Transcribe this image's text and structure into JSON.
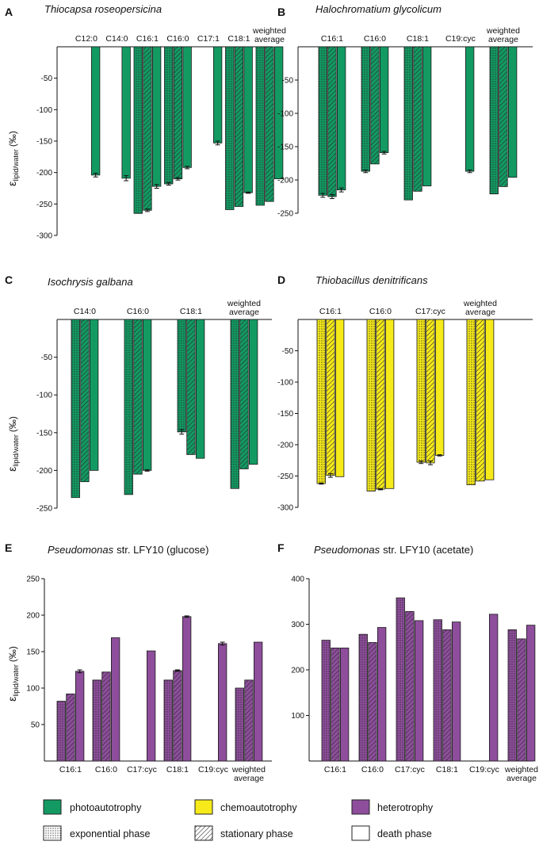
{
  "colors": {
    "photoautotrophy": "#139a63",
    "chemoautotrophy": "#f6ea1a",
    "heterotrophy": "#8e4e9c"
  },
  "ylabel_main": "ε",
  "ylabel_sub": "lipid/water",
  "ylabel_unit": "(‰)",
  "legend": {
    "photoautotrophy": "photoautotrophy",
    "chemoautotrophy": "chemoautotrophy",
    "heterotrophy": "heterotrophy",
    "exponential": "exponential phase",
    "stationary": "stationary phase",
    "death": "death phase"
  },
  "chart_data": [
    {
      "type": "bar",
      "panel": "A",
      "title": "Thiocapsa roseopersicina",
      "color": "photoautotrophy",
      "ylim": [
        -300,
        0
      ],
      "yticks": [
        -50,
        -100,
        -150,
        -200,
        -250,
        -300
      ],
      "categories": [
        "C12:0",
        "C14:0",
        "C16:1",
        "C16:0",
        "C17:1",
        "C18:1",
        "weighted average"
      ],
      "category_labels": [
        [
          "C12:0"
        ],
        [
          "C14:0"
        ],
        [
          "C16:1"
        ],
        [
          "C16:0"
        ],
        [
          "C17:1"
        ],
        [
          "C18:1"
        ],
        [
          "weighted",
          "average"
        ]
      ],
      "series": [
        {
          "name": "exponential phase",
          "values": [
            null,
            null,
            -265,
            -218,
            null,
            -259,
            -252
          ],
          "errors": [
            null,
            null,
            0,
            2,
            null,
            0,
            0
          ]
        },
        {
          "name": "stationary phase",
          "values": [
            null,
            null,
            -260,
            -210,
            null,
            -254,
            -246
          ],
          "errors": [
            null,
            null,
            2,
            2,
            null,
            0,
            0
          ]
        },
        {
          "name": "death phase",
          "values": [
            -204,
            -209,
            -222,
            -192,
            -153,
            -232,
            -210
          ],
          "errors": [
            3,
            4,
            3,
            2,
            3,
            1,
            0
          ]
        }
      ]
    },
    {
      "type": "bar",
      "panel": "B",
      "title": "Halochromatium glycolicum",
      "color": "photoautotrophy",
      "ylim": [
        -250,
        0
      ],
      "yticks": [
        -50,
        -100,
        -150,
        -200,
        -250
      ],
      "categories": [
        "C16:1",
        "C16:0",
        "C18:1",
        "C19:cyc",
        "weighted average"
      ],
      "category_labels": [
        [
          "C16:1"
        ],
        [
          "C16:0"
        ],
        [
          "C18:1"
        ],
        [
          "C19:cyc"
        ],
        [
          "weighted",
          "average"
        ]
      ],
      "series": [
        {
          "name": "exponential phase",
          "values": [
            -223,
            -187,
            -230,
            null,
            -221
          ],
          "errors": [
            3,
            2,
            0,
            null,
            0
          ]
        },
        {
          "name": "stationary phase",
          "values": [
            -225,
            -176,
            -217,
            null,
            -210
          ],
          "errors": [
            3,
            0,
            0,
            null,
            0
          ]
        },
        {
          "name": "death phase",
          "values": [
            -215,
            -159,
            -209,
            -187,
            -196
          ],
          "errors": [
            3,
            2,
            0,
            2,
            0
          ]
        }
      ]
    },
    {
      "type": "bar",
      "panel": "C",
      "title": "Isochrysis galbana",
      "color": "photoautotrophy",
      "ylim": [
        -250,
        0
      ],
      "yticks": [
        -50,
        -100,
        -150,
        -200,
        -250
      ],
      "categories": [
        "C14:0",
        "C16:0",
        "C18:1",
        "weighted average"
      ],
      "category_labels": [
        [
          "C14:0"
        ],
        [
          "C16:0"
        ],
        [
          "C18:1"
        ],
        [
          "weighted",
          "average"
        ]
      ],
      "series": [
        {
          "name": "exponential phase",
          "values": [
            -236,
            -232,
            -149,
            -224
          ],
          "errors": [
            0,
            0,
            3,
            0
          ]
        },
        {
          "name": "stationary phase",
          "values": [
            -215,
            -205,
            -179,
            -198
          ],
          "errors": [
            0,
            0,
            0,
            0
          ]
        },
        {
          "name": "death phase",
          "values": [
            -200,
            -200,
            -184,
            -192
          ],
          "errors": [
            0,
            1,
            0,
            0
          ]
        }
      ]
    },
    {
      "type": "bar",
      "panel": "D",
      "title": "Thiobacillus denitrificans",
      "color": "chemoautotrophy",
      "ylim": [
        -300,
        0
      ],
      "yticks": [
        -50,
        -100,
        -150,
        -200,
        -250,
        -300
      ],
      "categories": [
        "C16:1",
        "C16:0",
        "C17:cyc",
        "weighted average"
      ],
      "category_labels": [
        [
          "C16:1"
        ],
        [
          "C16:0"
        ],
        [
          "C17:cyc"
        ],
        [
          "weighted",
          "average"
        ]
      ],
      "series": [
        {
          "name": "exponential phase",
          "values": [
            -262,
            -274,
            -228,
            -264
          ],
          "errors": [
            1,
            0,
            2,
            0
          ]
        },
        {
          "name": "stationary phase",
          "values": [
            -249,
            -271,
            -229,
            -258
          ],
          "errors": [
            3,
            1,
            3,
            0
          ]
        },
        {
          "name": "death phase",
          "values": [
            -251,
            -270,
            -217,
            -256
          ],
          "errors": [
            0,
            0,
            1,
            0
          ]
        }
      ]
    },
    {
      "type": "bar",
      "panel": "E",
      "title": "Pseudomonas",
      "title_suffix": "str. LFY10 (glucose)",
      "color": "heterotrophy",
      "ylim": [
        0,
        250
      ],
      "yticks": [
        50,
        100,
        150,
        200,
        250
      ],
      "categories": [
        "C16:1",
        "C16:0",
        "C17:cyc",
        "C18:1",
        "C19:cyc",
        "weighted average"
      ],
      "category_labels": [
        [
          "C16:1"
        ],
        [
          "C16:0"
        ],
        [
          "C17:cyc"
        ],
        [
          "C18:1"
        ],
        [
          "C19:cyc"
        ],
        [
          "weighted",
          "average"
        ]
      ],
      "series": [
        {
          "name": "exponential phase",
          "values": [
            82,
            111,
            null,
            111,
            null,
            100
          ],
          "errors": [
            0,
            0,
            null,
            0,
            null,
            0
          ]
        },
        {
          "name": "stationary phase",
          "values": [
            92,
            122,
            null,
            124,
            null,
            111
          ],
          "errors": [
            0,
            0,
            null,
            1,
            null,
            0
          ]
        },
        {
          "name": "death phase",
          "values": [
            123,
            169,
            151,
            198,
            161,
            163
          ],
          "errors": [
            2,
            0,
            0,
            1,
            2,
            0
          ]
        }
      ]
    },
    {
      "type": "bar",
      "panel": "F",
      "title": "Pseudomonas",
      "title_suffix": "str. LFY10 (acetate)",
      "color": "heterotrophy",
      "ylim": [
        0,
        400
      ],
      "yticks": [
        100,
        200,
        300,
        400
      ],
      "categories": [
        "C16:1",
        "C16:0",
        "C17:cyc",
        "C18:1",
        "C19:cyc",
        "weighted average"
      ],
      "category_labels": [
        [
          "C16:1"
        ],
        [
          "C16:0"
        ],
        [
          "C17:cyc"
        ],
        [
          "C18:1"
        ],
        [
          "C19:cyc"
        ],
        [
          "weighted",
          "average"
        ]
      ],
      "series": [
        {
          "name": "exponential phase",
          "values": [
            265,
            278,
            358,
            310,
            null,
            288
          ],
          "errors": [
            0,
            0,
            0,
            0,
            null,
            0
          ]
        },
        {
          "name": "stationary phase",
          "values": [
            248,
            260,
            328,
            288,
            null,
            268
          ],
          "errors": [
            0,
            0,
            0,
            0,
            null,
            0
          ]
        },
        {
          "name": "death phase",
          "values": [
            248,
            293,
            308,
            305,
            322,
            298
          ],
          "errors": [
            0,
            0,
            0,
            0,
            0,
            0
          ]
        }
      ]
    }
  ]
}
